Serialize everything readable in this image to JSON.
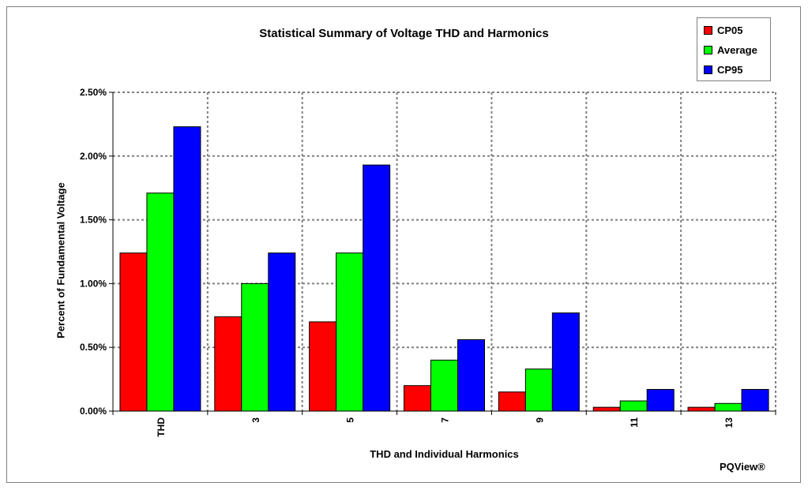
{
  "chart_data": {
    "type": "bar",
    "title": "Statistical Summary of Voltage THD and Harmonics",
    "xlabel": "THD and Individual Harmonics",
    "ylabel": "Percent of Fundamental Voltage",
    "categories": [
      "THD",
      "3",
      "5",
      "7",
      "9",
      "11",
      "13"
    ],
    "series": [
      {
        "name": "CP05",
        "color": "#ff0000",
        "values": [
          1.24,
          0.74,
          0.7,
          0.2,
          0.15,
          0.03,
          0.03
        ]
      },
      {
        "name": "Average",
        "color": "#00ff00",
        "values": [
          1.71,
          1.0,
          1.24,
          0.4,
          0.33,
          0.08,
          0.06
        ]
      },
      {
        "name": "CP95",
        "color": "#0000ff",
        "values": [
          2.23,
          1.24,
          1.93,
          0.56,
          0.77,
          0.17,
          0.17
        ]
      }
    ],
    "ylim": [
      0,
      2.5
    ],
    "yticks": [
      "0.00%",
      "0.50%",
      "1.00%",
      "1.50%",
      "2.00%",
      "2.50%"
    ],
    "ytick_values": [
      0,
      0.5,
      1.0,
      1.5,
      2.0,
      2.5
    ],
    "grid": true,
    "legend": "top-right"
  },
  "brand": "PQView®"
}
